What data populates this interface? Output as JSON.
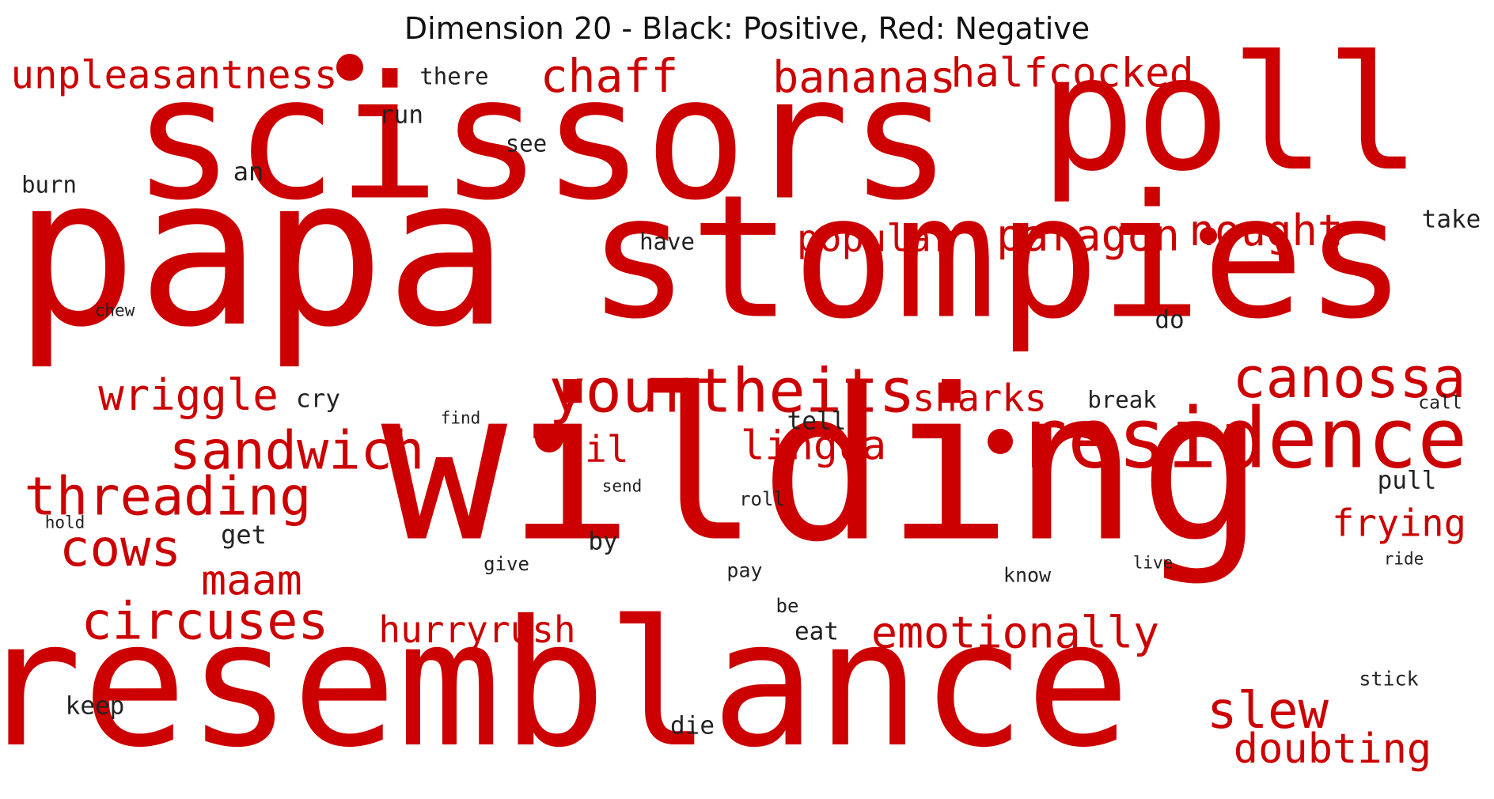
{
  "title": "Dimension 20 - Black: Positive, Red: Negative",
  "colors": {
    "positive": "#222222",
    "negative": "#cc0000",
    "background": "#ffffff"
  },
  "words": [
    {
      "text": "scissors",
      "polarity": "negative"
    },
    {
      "text": "poll",
      "polarity": "negative"
    },
    {
      "text": "papa",
      "polarity": "negative"
    },
    {
      "text": "stompies",
      "polarity": "negative"
    },
    {
      "text": "wilding",
      "polarity": "negative"
    },
    {
      "text": "resemblance",
      "polarity": "negative"
    },
    {
      "text": "residence",
      "polarity": "negative"
    },
    {
      "text": "unpleasantness",
      "polarity": "negative"
    },
    {
      "text": "chaff",
      "polarity": "negative"
    },
    {
      "text": "bananas",
      "polarity": "negative"
    },
    {
      "text": "halfcocked",
      "polarity": "negative"
    },
    {
      "text": "paragon",
      "polarity": "negative"
    },
    {
      "text": "nought",
      "polarity": "negative"
    },
    {
      "text": "popular",
      "polarity": "negative"
    },
    {
      "text": "yourtheits",
      "polarity": "negative"
    },
    {
      "text": "canossa",
      "polarity": "negative"
    },
    {
      "text": "wriggle",
      "polarity": "negative"
    },
    {
      "text": "sharks",
      "polarity": "negative"
    },
    {
      "text": "sandwich",
      "polarity": "negative"
    },
    {
      "text": "til",
      "polarity": "negative"
    },
    {
      "text": "lingua",
      "polarity": "negative"
    },
    {
      "text": "threading",
      "polarity": "negative"
    },
    {
      "text": "cows",
      "polarity": "negative"
    },
    {
      "text": "maam",
      "polarity": "negative"
    },
    {
      "text": "circuses",
      "polarity": "negative"
    },
    {
      "text": "hurryrush",
      "polarity": "negative"
    },
    {
      "text": "emotionally",
      "polarity": "negative"
    },
    {
      "text": "frying",
      "polarity": "negative"
    },
    {
      "text": "slew",
      "polarity": "negative"
    },
    {
      "text": "doubting",
      "polarity": "negative"
    },
    {
      "text": "there",
      "polarity": "positive"
    },
    {
      "text": "run",
      "polarity": "positive"
    },
    {
      "text": "see",
      "polarity": "positive"
    },
    {
      "text": "an",
      "polarity": "positive"
    },
    {
      "text": "burn",
      "polarity": "positive"
    },
    {
      "text": "take",
      "polarity": "positive"
    },
    {
      "text": "have",
      "polarity": "positive"
    },
    {
      "text": "chew",
      "polarity": "positive"
    },
    {
      "text": "do",
      "polarity": "positive"
    },
    {
      "text": "cry",
      "polarity": "positive"
    },
    {
      "text": "find",
      "polarity": "positive"
    },
    {
      "text": "tell",
      "polarity": "positive"
    },
    {
      "text": "break",
      "polarity": "positive"
    },
    {
      "text": "call",
      "polarity": "positive"
    },
    {
      "text": "send",
      "polarity": "positive"
    },
    {
      "text": "roll",
      "polarity": "positive"
    },
    {
      "text": "pull",
      "polarity": "positive"
    },
    {
      "text": "hold",
      "polarity": "positive"
    },
    {
      "text": "get",
      "polarity": "positive"
    },
    {
      "text": "by",
      "polarity": "positive"
    },
    {
      "text": "give",
      "polarity": "positive"
    },
    {
      "text": "pay",
      "polarity": "positive"
    },
    {
      "text": "know",
      "polarity": "positive"
    },
    {
      "text": "live",
      "polarity": "positive"
    },
    {
      "text": "ride",
      "polarity": "positive"
    },
    {
      "text": "be",
      "polarity": "positive"
    },
    {
      "text": "eat",
      "polarity": "positive"
    },
    {
      "text": "stick",
      "polarity": "positive"
    },
    {
      "text": "keep",
      "polarity": "positive"
    },
    {
      "text": "die",
      "polarity": "positive"
    }
  ],
  "dots": [
    {
      "polarity": "negative"
    },
    {
      "polarity": "negative"
    },
    {
      "polarity": "negative"
    },
    {
      "polarity": "negative"
    }
  ]
}
